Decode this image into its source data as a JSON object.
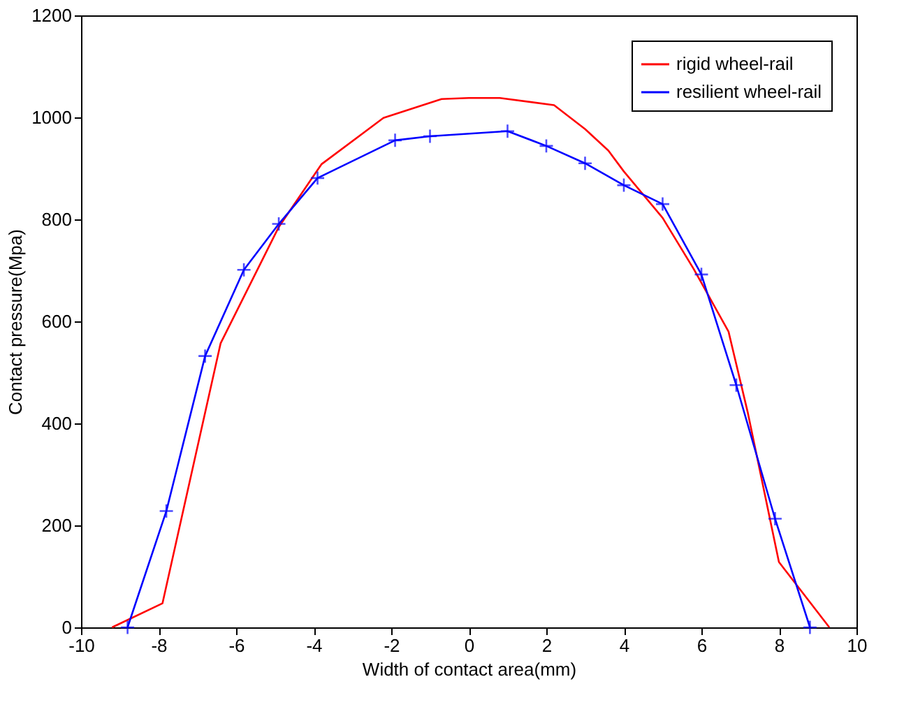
{
  "chart_data": {
    "type": "line",
    "xlabel": "Width of contact area(mm)",
    "ylabel": "Contact pressure(Mpa)",
    "xlim": [
      -10,
      10
    ],
    "xticks": [
      -10,
      -8,
      -6,
      -4,
      -2,
      0,
      2,
      4,
      6,
      8,
      10
    ],
    "ylim": [
      0,
      1200
    ],
    "yticks": [
      0,
      200,
      400,
      600,
      800,
      1000,
      1200
    ],
    "grid": false,
    "legend": "top right",
    "series": [
      {
        "name": "rigid wheel-rail",
        "color": "#ff0000",
        "marker": "none",
        "x": [
          -9.2,
          -7.9,
          -6.4,
          -4.9,
          -3.8,
          -2.2,
          -0.7,
          0,
          0.8,
          2.2,
          3.0,
          3.6,
          4.0,
          5.0,
          5.8,
          6.7,
          7.2,
          8.0,
          9.3
        ],
        "values": [
          0,
          47,
          557,
          785,
          908,
          999,
          1036,
          1038,
          1038,
          1024,
          977,
          935,
          894,
          803,
          703,
          580,
          420,
          128,
          0
        ]
      },
      {
        "name": "resilient wheel-rail",
        "color": "#0000ff",
        "marker": "cross",
        "x": [
          -8.8,
          -7.8,
          -6.8,
          -5.8,
          -4.9,
          -3.9,
          -1.9,
          -1.0,
          1.0,
          2.0,
          3.0,
          4.0,
          5.0,
          6.0,
          6.9,
          7.9,
          8.8
        ],
        "values": [
          0,
          228,
          532,
          701,
          791,
          881,
          955,
          963,
          973,
          944,
          910,
          867,
          830,
          692,
          475,
          213,
          0
        ]
      }
    ]
  }
}
